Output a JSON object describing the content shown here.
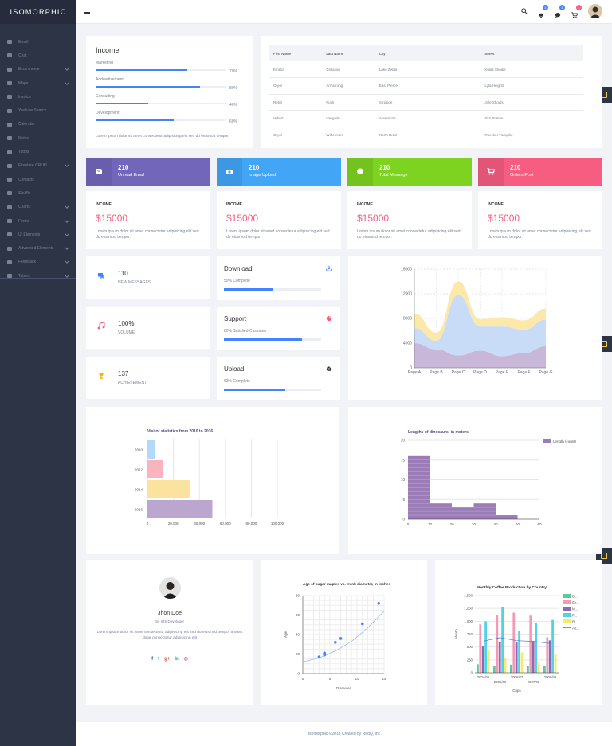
{
  "app": {
    "logo": "ISOMORPHIC"
  },
  "sidebar": {
    "items": [
      {
        "label": "Email",
        "icon": "mail-icon",
        "chevron": false
      },
      {
        "label": "Chat",
        "icon": "chat-icon",
        "chevron": false
      },
      {
        "label": "Ecommerce",
        "icon": "bag-icon",
        "chevron": true
      },
      {
        "label": "Maps",
        "icon": "map-icon",
        "chevron": true
      },
      {
        "label": "Invoice",
        "icon": "invoice-icon",
        "chevron": false
      },
      {
        "label": "Youtube Search",
        "icon": "youtube-icon",
        "chevron": false
      },
      {
        "label": "Calendar",
        "icon": "calendar-icon",
        "chevron": false
      },
      {
        "label": "Notes",
        "icon": "notes-icon",
        "chevron": false
      },
      {
        "label": "Todos",
        "icon": "todos-icon",
        "chevron": false
      },
      {
        "label": "Firestore CRUD",
        "icon": "fire-icon",
        "chevron": true
      },
      {
        "label": "Contacts",
        "icon": "contacts-icon",
        "chevron": false
      },
      {
        "label": "Shuffle",
        "icon": "shuffle-icon",
        "chevron": false
      },
      {
        "label": "Charts",
        "icon": "chart-icon",
        "chevron": true
      },
      {
        "label": "Forms",
        "icon": "forms-icon",
        "chevron": true
      },
      {
        "label": "UI Elements",
        "icon": "ui-icon",
        "chevron": true
      },
      {
        "label": "Advanced Elements",
        "icon": "advanced-icon",
        "chevron": true
      },
      {
        "label": "Feedback",
        "icon": "feedback-icon",
        "chevron": true
      },
      {
        "label": "Tables",
        "icon": "tables-icon",
        "chevron": true
      }
    ]
  },
  "topbar": {
    "badges": [
      {
        "icon": "bell-icon",
        "count": "4",
        "color": "#4482ff"
      },
      {
        "icon": "message-icon",
        "count": "4",
        "color": "#4482ff"
      },
      {
        "icon": "cart-icon",
        "count": "4",
        "color": "#f75d81"
      }
    ]
  },
  "income_card": {
    "title": "Income",
    "bars": [
      {
        "label": "Marketing",
        "percent": 70,
        "pct_text": "70%"
      },
      {
        "label": "Addvertisement",
        "percent": 80,
        "pct_text": "80%"
      },
      {
        "label": "Consulting",
        "percent": 40,
        "pct_text": "40%"
      },
      {
        "label": "Development",
        "percent": 60,
        "pct_text": "60%"
      }
    ],
    "text": "Lorem ipsum dolor sit amet consectetur adipisicing elit sed do eiusmod tempor"
  },
  "table": {
    "headers": [
      "First Name",
      "Last Name",
      "City",
      "Street"
    ],
    "rows": [
      [
        "Emelia",
        "Gislason",
        "Lake Zelda",
        "Kulas Shoals"
      ],
      [
        "Oryol",
        "Armstrong",
        "East Pierce",
        "Lyla Heights"
      ],
      [
        "Retut",
        "Funk",
        "Strpside",
        "Jole Shoals"
      ],
      [
        "Hrbert",
        "Langosh",
        "Anissshire",
        "Sim Station"
      ],
      [
        "Oryol",
        "Widerman",
        "North Brad",
        "Ruecker Turnpike"
      ]
    ]
  },
  "stats": [
    {
      "value": "210",
      "label": "Unread Email",
      "color": "#7266ba",
      "icon": "mail-icon"
    },
    {
      "value": "210",
      "label": "Image Upload",
      "color": "#42a5f6",
      "icon": "camera-icon"
    },
    {
      "value": "210",
      "label": "Total Message",
      "color": "#7ed320",
      "icon": "chat-icon"
    },
    {
      "value": "210",
      "label": "Orders Post",
      "color": "#f75d81",
      "icon": "cart-icon"
    }
  ],
  "income_boxes": [
    {
      "title": "INCOME",
      "value": "$15000",
      "text": "Lorem ipsum dolor sit amet consectetur adipisicing elit sed do eiusmod tempor."
    },
    {
      "title": "INCOME",
      "value": "$15000",
      "text": "Lorem ipsum dolor sit amet consectetur adipisicing elit sed do eiusmod tempor."
    },
    {
      "title": "INCOME",
      "value": "$15000",
      "text": "Lorem ipsum dolor sit amet consectetur adipisicing elit sed do eiusmod tempor."
    },
    {
      "title": "INCOME",
      "value": "$15000",
      "text": "Lorem ipsum dolor sit amet consectetur adipisicing elit sed do eiusmod tempor."
    }
  ],
  "mini_stats": [
    {
      "value": "110",
      "label": "NEW MESSAGES",
      "icon": "chat-icon",
      "color": "#4482ff"
    },
    {
      "value": "100%",
      "label": "VOLUME",
      "icon": "music-icon",
      "color": "#f75d81"
    },
    {
      "value": "137",
      "label": "ACHIEVEMENT",
      "icon": "trophy-icon",
      "color": "#f7b500"
    }
  ],
  "progress_cards": [
    {
      "title": "Download",
      "sub": "50% Complete",
      "percent": 50,
      "icon": "download-icon",
      "icon_color": "#4482ff"
    },
    {
      "title": "Support",
      "sub": "80% Satisfied Customer",
      "percent": 80,
      "icon": "pie-icon",
      "icon_color": "#f75d81"
    },
    {
      "title": "Upload",
      "sub": "63% Complete",
      "percent": 63,
      "icon": "upload-icon",
      "icon_color": "#323332"
    }
  ],
  "profile": {
    "name": "Jhon Doe",
    "role": "Sr. iOS Developer",
    "text": "Lorem ipsum dolor sit amet consectetur adipisicing elit sed do eiusmod tempor ammet dolar consectetur adipisicing elit",
    "socials": [
      "facebook-icon",
      "twitter-icon",
      "google-plus-icon",
      "linkedin-icon",
      "dribbble-icon"
    ]
  },
  "footer": {
    "text": "Isomorphic ©2018 Created by RedQ, Inc"
  },
  "chart_data": [
    {
      "type": "area",
      "categories": [
        "Page A",
        "Page B",
        "Page C",
        "Page D",
        "Page E",
        "Page F",
        "Page G"
      ],
      "ylim": [
        0,
        16000
      ],
      "yticks": [
        "0",
        "4000",
        "8000",
        "12000",
        "16000"
      ],
      "grid": true,
      "series": [
        {
          "values": [
            4000,
            3000,
            2000,
            2780,
            1890,
            2390,
            3490
          ],
          "color": "#c9b7d9"
        },
        {
          "values": [
            2400,
            1398,
            9800,
            3908,
            4800,
            3800,
            4300
          ],
          "color": "#c9dcf7"
        },
        {
          "values": [
            2400,
            1300,
            2200,
            1200,
            1500,
            1500,
            1800
          ],
          "color": "#fce8a8"
        }
      ]
    },
    {
      "type": "bar",
      "orientation": "horizontal",
      "title": "Visitor statistics from 2010 to 2016",
      "categories": [
        "2010",
        "2012",
        "2014",
        "2016"
      ],
      "values": [
        6000,
        12000,
        33000,
        50000
      ],
      "xticks": [
        "0",
        "20,000",
        "40,000",
        "60,000",
        "80,000",
        "100,000"
      ],
      "xlim": [
        0,
        100000
      ],
      "colors": [
        "#b3d8fb",
        "#f9b4bd",
        "#fbe29e",
        "#bba6cf"
      ]
    },
    {
      "type": "bar",
      "title": "Lengths of dinosaurs, in meters",
      "x": [
        0,
        10,
        20,
        30,
        40,
        50
      ],
      "values": [
        16,
        4,
        3,
        4,
        1,
        0
      ],
      "bin_width": 10,
      "xticks": [
        "0",
        "10",
        "20",
        "30",
        "40",
        "50",
        "60"
      ],
      "yticks": [
        "0",
        "5",
        "10",
        "15",
        "20"
      ],
      "ylim": [
        0,
        20
      ],
      "xlim": [
        0,
        60
      ],
      "legend": {
        "label": "Length (count)",
        "position": "right"
      },
      "color": "#9b7cb7"
    },
    {
      "type": "scatter",
      "title": "Age of sugar maples vs. trunk diameter, in inches",
      "xlabel": "Diameter",
      "ylabel": "Age",
      "xlim": [
        0,
        15
      ],
      "ylim": [
        0,
        80
      ],
      "xticks": [
        "0",
        "5",
        "10",
        "15"
      ],
      "yticks": [
        "0",
        "20",
        "40",
        "60",
        "80"
      ],
      "points": [
        [
          3,
          17
        ],
        [
          4,
          21
        ],
        [
          4,
          19
        ],
        [
          6,
          32
        ],
        [
          7,
          36
        ],
        [
          11,
          51
        ],
        [
          14,
          72
        ]
      ],
      "trend": [
        [
          0,
          12
        ],
        [
          3,
          16
        ],
        [
          6,
          23
        ],
        [
          9,
          33
        ],
        [
          12,
          47
        ],
        [
          15,
          64
        ]
      ],
      "color": "#4482ff"
    },
    {
      "type": "bar",
      "title": "Monthly Coffee Production by Country",
      "xlabel": "Cups",
      "ylabel": "Month",
      "ylim": [
        0,
        1500
      ],
      "yticks": [
        "0",
        "250",
        "500",
        "750",
        "1,000",
        "1,250",
        "1,500"
      ],
      "categories": [
        "2004/05",
        "2005/06",
        "2006/07",
        "2007/08",
        "2008/09"
      ],
      "xticks": [
        "2004/05",
        "2006/07",
        "2008/09"
      ],
      "xticks_low": [
        "2005/06",
        "2007/08"
      ],
      "series": [
        {
          "name": "B...",
          "values": [
            165,
            135,
            157,
            139,
            136
          ],
          "color": "#5dc8a0"
        },
        {
          "name": "Ec...",
          "values": [
            938,
            1120,
            1167,
            1110,
            691
          ],
          "color": "#f39ab7"
        },
        {
          "name": "M...",
          "values": [
            522,
            599,
            587,
            615,
            629
          ],
          "color": "#8c6bb1"
        },
        {
          "name": "P...",
          "values": [
            998,
            1268,
            807,
            968,
            1026
          ],
          "color": "#4fd3e6"
        },
        {
          "name": "R...",
          "values": [
            450,
            288,
            397,
            215,
            366
          ],
          "color": "#f7e86e"
        },
        {
          "name": "Av...",
          "values": [
            614,
            682,
            623,
            609,
            569
          ],
          "color": "#4b79c7",
          "line": true
        }
      ]
    }
  ]
}
